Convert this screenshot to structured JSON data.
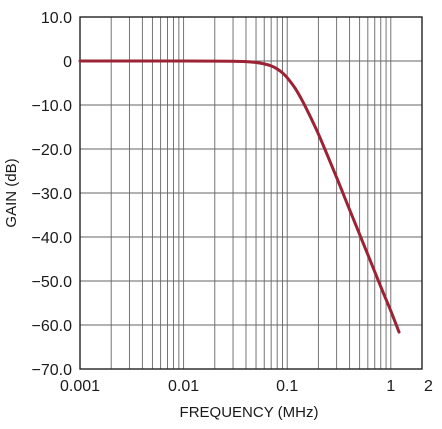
{
  "chart_data": {
    "type": "line",
    "xlabel": "FREQUENCY (MHz)",
    "ylabel": "GAIN (dB)",
    "xscale": "log",
    "xlim": [
      0.001,
      2
    ],
    "ylim": [
      -70,
      10
    ],
    "grid": true,
    "x_ticks": [
      {
        "value": 0.001,
        "label": "0.001"
      },
      {
        "value": 0.01,
        "label": "0.01"
      },
      {
        "value": 0.1,
        "label": "0.1"
      },
      {
        "value": 1,
        "label": "1"
      },
      {
        "value": 2,
        "label": "2"
      }
    ],
    "y_ticks": [
      {
        "value": 10,
        "label": "10.0"
      },
      {
        "value": 0,
        "label": "0"
      },
      {
        "value": -10,
        "label": "−10.0"
      },
      {
        "value": -20,
        "label": "−20.0"
      },
      {
        "value": -30,
        "label": "−30.0"
      },
      {
        "value": -40,
        "label": "−40.0"
      },
      {
        "value": -50,
        "label": "−50.0"
      },
      {
        "value": -60,
        "label": "−60.0"
      },
      {
        "value": -70,
        "label": "−70.0"
      }
    ],
    "series": [
      {
        "color": "#9b2335",
        "x": [
          0.001,
          0.003,
          0.01,
          0.02,
          0.03,
          0.04,
          0.05,
          0.06,
          0.07,
          0.08,
          0.09,
          0.1,
          0.12,
          0.15,
          0.2,
          0.3,
          0.4,
          0.5,
          0.6,
          0.8,
          1.0,
          1.2
        ],
        "y": [
          0,
          0,
          0,
          -0.02,
          -0.06,
          -0.15,
          -0.33,
          -0.65,
          -1.1,
          -1.8,
          -2.7,
          -3.8,
          -6.3,
          -10.4,
          -16.6,
          -26.5,
          -33.8,
          -39.4,
          -44.0,
          -51.3,
          -56.8,
          -61.6
        ]
      }
    ]
  }
}
